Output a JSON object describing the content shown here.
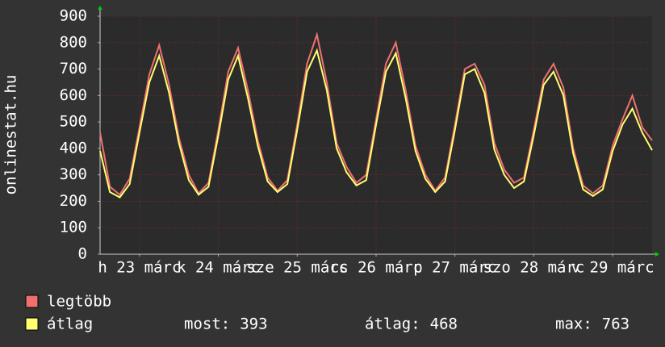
{
  "chart_data": {
    "type": "line",
    "y_label": "onlinestat.hu",
    "x": [
      0,
      3,
      6,
      9,
      12,
      15,
      18,
      21,
      24,
      27,
      30,
      33,
      36,
      39,
      42,
      45,
      48,
      51,
      54,
      57,
      60,
      63,
      66,
      69,
      72,
      75,
      78,
      81,
      84,
      87,
      90,
      93,
      96,
      99,
      102,
      105,
      108,
      111,
      114,
      117,
      120,
      123,
      126,
      129,
      132,
      135,
      138,
      141,
      144,
      147,
      150,
      153,
      156,
      159,
      162,
      165,
      168
    ],
    "xlim": [
      0,
      168
    ],
    "xticks": [
      {
        "value": 12,
        "label": "h 23 márc"
      },
      {
        "value": 36,
        "label": "k 24 márc"
      },
      {
        "value": 60,
        "label": "sze 25 márc"
      },
      {
        "value": 84,
        "label": "cs 26 márc"
      },
      {
        "value": 108,
        "label": "p 27 márc"
      },
      {
        "value": 132,
        "label": "szo 28 márc"
      },
      {
        "value": 156,
        "label": "v 29 márc"
      }
    ],
    "ylim": [
      0,
      900
    ],
    "yticks": [
      0,
      100,
      200,
      300,
      400,
      500,
      600,
      700,
      800,
      900
    ],
    "grid": true,
    "series": [
      {
        "name": "legtöbb",
        "color": "#f07070",
        "values": [
          460,
          255,
          225,
          285,
          480,
          680,
          790,
          640,
          440,
          300,
          230,
          270,
          470,
          690,
          780,
          620,
          430,
          290,
          240,
          280,
          490,
          720,
          830,
          650,
          420,
          330,
          270,
          300,
          510,
          720,
          800,
          620,
          410,
          300,
          240,
          290,
          490,
          700,
          720,
          640,
          420,
          320,
          270,
          290,
          470,
          660,
          720,
          630,
          400,
          260,
          230,
          260,
          410,
          510,
          600,
          480,
          430
        ]
      },
      {
        "name": "átlag",
        "color": "#ffff70",
        "values": [
          390,
          235,
          215,
          265,
          460,
          650,
          750,
          610,
          420,
          280,
          225,
          255,
          450,
          660,
          750,
          590,
          410,
          275,
          235,
          265,
          470,
          690,
          770,
          620,
          400,
          310,
          260,
          280,
          490,
          690,
          760,
          590,
          390,
          285,
          235,
          275,
          470,
          680,
          700,
          610,
          395,
          300,
          250,
          275,
          450,
          640,
          690,
          600,
          380,
          245,
          220,
          245,
          390,
          490,
          550,
          460,
          393
        ]
      }
    ],
    "stats": [
      {
        "label": "most:",
        "value": 393
      },
      {
        "label": "átlag:",
        "value": 468
      },
      {
        "label": "max:",
        "value": 763
      }
    ]
  }
}
